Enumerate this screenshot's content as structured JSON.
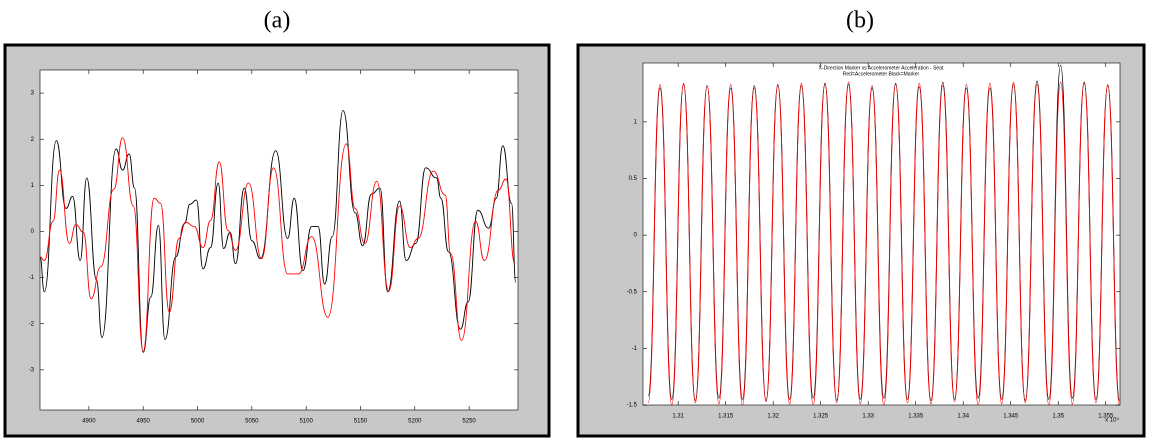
{
  "chart_data": [
    {
      "type": "line",
      "label": "(a)",
      "xlim": [
        4855,
        5295
      ],
      "ylim": [
        -3.87,
        3.5
      ],
      "xticks": [
        4900,
        4950,
        5000,
        5050,
        5100,
        5150,
        5200,
        5250
      ],
      "yticks": [
        -3,
        -2,
        -1,
        0,
        1,
        2,
        3
      ],
      "series": [
        {
          "color": "#000000",
          "x": [
            4855,
            4859,
            4870,
            4879,
            4885,
            4892,
            4898,
            4907,
            4912,
            4925,
            4931,
            4937,
            4942,
            4950,
            4957,
            4964,
            4970,
            4980,
            4988,
            4993,
            4999,
            5005,
            5012,
            5019,
            5024,
            5030,
            5035,
            5043,
            5050,
            5058,
            5072,
            5083,
            5089,
            5097,
            5105,
            5111,
            5117,
            5124,
            5134,
            5145,
            5152,
            5160,
            5168,
            5175,
            5186,
            5192,
            5201,
            5210,
            5220,
            5224,
            5231,
            5242,
            5249,
            5258,
            5268,
            5275,
            5281,
            5289,
            5293
          ],
          "values": [
            -0.55,
            -1.31,
            1.97,
            0.5,
            0.76,
            -0.63,
            1.16,
            -1.05,
            -2.3,
            1.79,
            1.33,
            1.68,
            0.94,
            -2.62,
            -1.42,
            0.13,
            -2.34,
            -0.55,
            0.17,
            0.59,
            0.68,
            -0.81,
            -0.35,
            1.05,
            -0.37,
            -0.02,
            -0.7,
            0.94,
            -0.2,
            -0.59,
            1.75,
            -0.15,
            0.72,
            -0.85,
            0.11,
            0.11,
            -1.14,
            -0.11,
            2.62,
            0.41,
            -0.31,
            0.81,
            0.94,
            -1.31,
            0.66,
            -0.63,
            -0.26,
            1.38,
            1.16,
            0.72,
            -0.44,
            -2.12,
            -1.53,
            0.46,
            0.07,
            0.72,
            1.86,
            0.61,
            -1.11
          ]
        },
        {
          "color": "#ff0000",
          "x": [
            4855,
            4859,
            4867,
            4873,
            4882,
            4888,
            4895,
            4902,
            4911,
            4923,
            4931,
            4941,
            4950,
            4960,
            4966,
            4974,
            4983,
            4989,
            4997,
            5005,
            5012,
            5020,
            5028,
            5035,
            5047,
            5059,
            5070,
            5083,
            5093,
            5105,
            5120,
            5137,
            5145,
            5154,
            5165,
            5176,
            5186,
            5196,
            5203,
            5217,
            5228,
            5233,
            5243,
            5256,
            5264,
            5277,
            5284,
            5292
          ],
          "values": [
            -0.55,
            -0.63,
            0.22,
            1.33,
            -0.26,
            0.15,
            -0.02,
            -1.46,
            -0.76,
            0.92,
            2.03,
            0.55,
            -2.6,
            0.72,
            0.61,
            -1.75,
            -0.15,
            0.2,
            0.11,
            -0.35,
            0.24,
            1.51,
            0.02,
            -0.41,
            1.05,
            -0.59,
            1.38,
            -0.92,
            -0.92,
            -0.11,
            -1.86,
            1.9,
            0.5,
            -0.26,
            1.09,
            -1.29,
            0.55,
            -0.35,
            -0.15,
            1.31,
            0.79,
            -0.48,
            -2.36,
            0.22,
            -0.63,
            0.9,
            1.14,
            -0.7
          ]
        }
      ]
    },
    {
      "type": "line",
      "label": "(b)",
      "title": "X-Direction Marker vs Accelerometer Acceleration - Seat",
      "subtitle": "Red=Accelerometer Black=Marker",
      "x_multiplier": "x 10⁴",
      "xlim": [
        1.3063,
        1.3565
      ],
      "ylim": [
        -1.5,
        1.52
      ],
      "xticks": [
        1.31,
        1.315,
        1.32,
        1.325,
        1.33,
        1.335,
        1.34,
        1.345,
        1.35,
        1.355
      ],
      "yticks": [
        -1.5,
        -1,
        -0.5,
        0,
        0.5,
        1
      ],
      "x": [
        1.30685,
        1.30809,
        1.30933,
        1.31057,
        1.31181,
        1.31305,
        1.31429,
        1.31553,
        1.31677,
        1.31801,
        1.31925,
        1.32049,
        1.32173,
        1.32297,
        1.32421,
        1.32545,
        1.32669,
        1.32793,
        1.32917,
        1.33041,
        1.33165,
        1.33289,
        1.33413,
        1.33537,
        1.33661,
        1.33785,
        1.33909,
        1.34033,
        1.34157,
        1.34281,
        1.34405,
        1.34529,
        1.34653,
        1.34777,
        1.34901,
        1.35025,
        1.35149,
        1.35273,
        1.35397,
        1.35521,
        1.35645
      ],
      "series": [
        {
          "color": "#000000",
          "values": [
            -1.42,
            1.3,
            -1.45,
            1.33,
            -1.46,
            1.32,
            -1.44,
            1.3,
            -1.45,
            1.32,
            -1.46,
            1.33,
            -1.45,
            1.32,
            -1.44,
            1.34,
            -1.46,
            1.33,
            -1.45,
            1.3,
            -1.44,
            1.34,
            -1.45,
            1.31,
            -1.46,
            1.35,
            -1.45,
            1.3,
            -1.44,
            1.3,
            -1.45,
            1.33,
            -1.46,
            1.36,
            -1.45,
            1.5,
            -1.44,
            1.35,
            -1.45,
            1.32,
            -1.46
          ]
        },
        {
          "color": "#ff0000",
          "values": [
            -1.48,
            1.33,
            -1.5,
            1.34,
            -1.48,
            1.32,
            -1.49,
            1.33,
            -1.5,
            1.3,
            -1.47,
            1.32,
            -1.49,
            1.34,
            -1.5,
            1.33,
            -1.48,
            1.35,
            -1.49,
            1.32,
            -1.5,
            1.33,
            -1.48,
            1.34,
            -1.49,
            1.32,
            -1.47,
            1.33,
            -1.5,
            1.34,
            -1.49,
            1.35,
            -1.48,
            1.33,
            -1.5,
            1.35,
            -1.49,
            1.34,
            -1.48,
            1.33,
            -1.5
          ]
        }
      ]
    }
  ]
}
